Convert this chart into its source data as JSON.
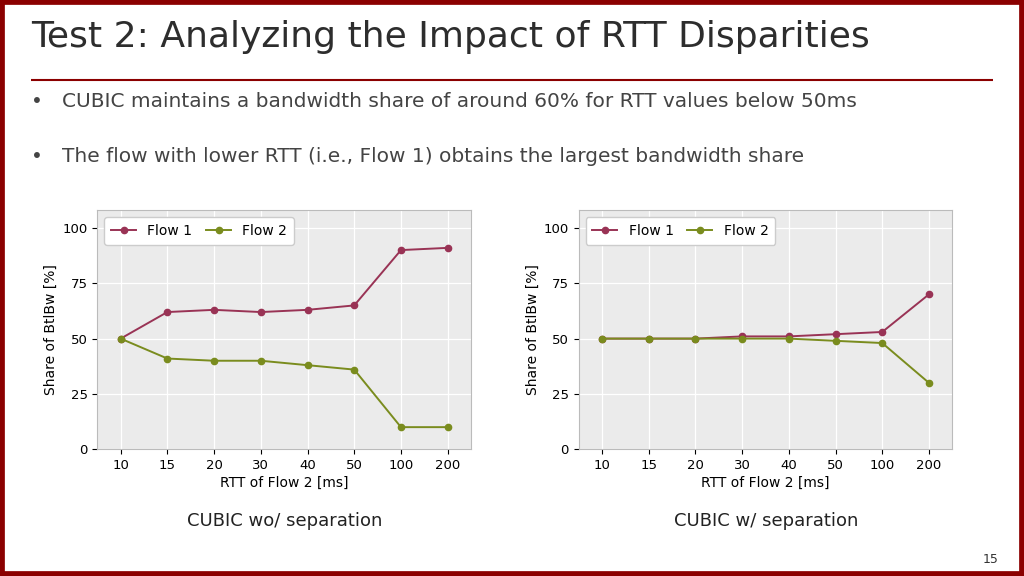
{
  "title": "Test 2: Analyzing the Impact of RTT Disparities",
  "title_color": "#2d2d2d",
  "title_fontsize": 26,
  "title_underline_color": "#8B0000",
  "bullet1": "CUBIC maintains a bandwidth share of around 60% for RTT values below 50ms",
  "bullet2": "The flow with lower RTT (i.e., Flow 1) obtains the largest bandwidth share",
  "bullet_fontsize": 14.5,
  "bullet_color": "#444444",
  "background_color": "#ffffff",
  "border_color": "#8B0000",
  "border_thickness": 7,
  "x_labels": [
    "10",
    "15",
    "20",
    "30",
    "40",
    "50",
    "100",
    "200"
  ],
  "chart1_flow1_y": [
    50,
    62,
    63,
    62,
    63,
    65,
    90,
    91
  ],
  "chart1_flow2_y": [
    50,
    41,
    40,
    40,
    38,
    36,
    10,
    10
  ],
  "chart2_flow1_y": [
    50,
    50,
    50,
    51,
    51,
    52,
    53,
    70
  ],
  "chart2_flow2_y": [
    50,
    50,
    50,
    50,
    50,
    49,
    48,
    30
  ],
  "flow1_color": "#993355",
  "flow2_color": "#7a8c1e",
  "xlabel": "RTT of Flow 2 [ms]",
  "ylabel": "Share of BtlBw [%]",
  "yticks": [
    0,
    25,
    50,
    75,
    100
  ],
  "caption1": "CUBIC wo/ separation",
  "caption2": "CUBIC w/ separation",
  "caption_fontsize": 13,
  "legend_fontsize": 10,
  "axis_fontsize": 10,
  "tick_fontsize": 9.5,
  "page_number": "15"
}
